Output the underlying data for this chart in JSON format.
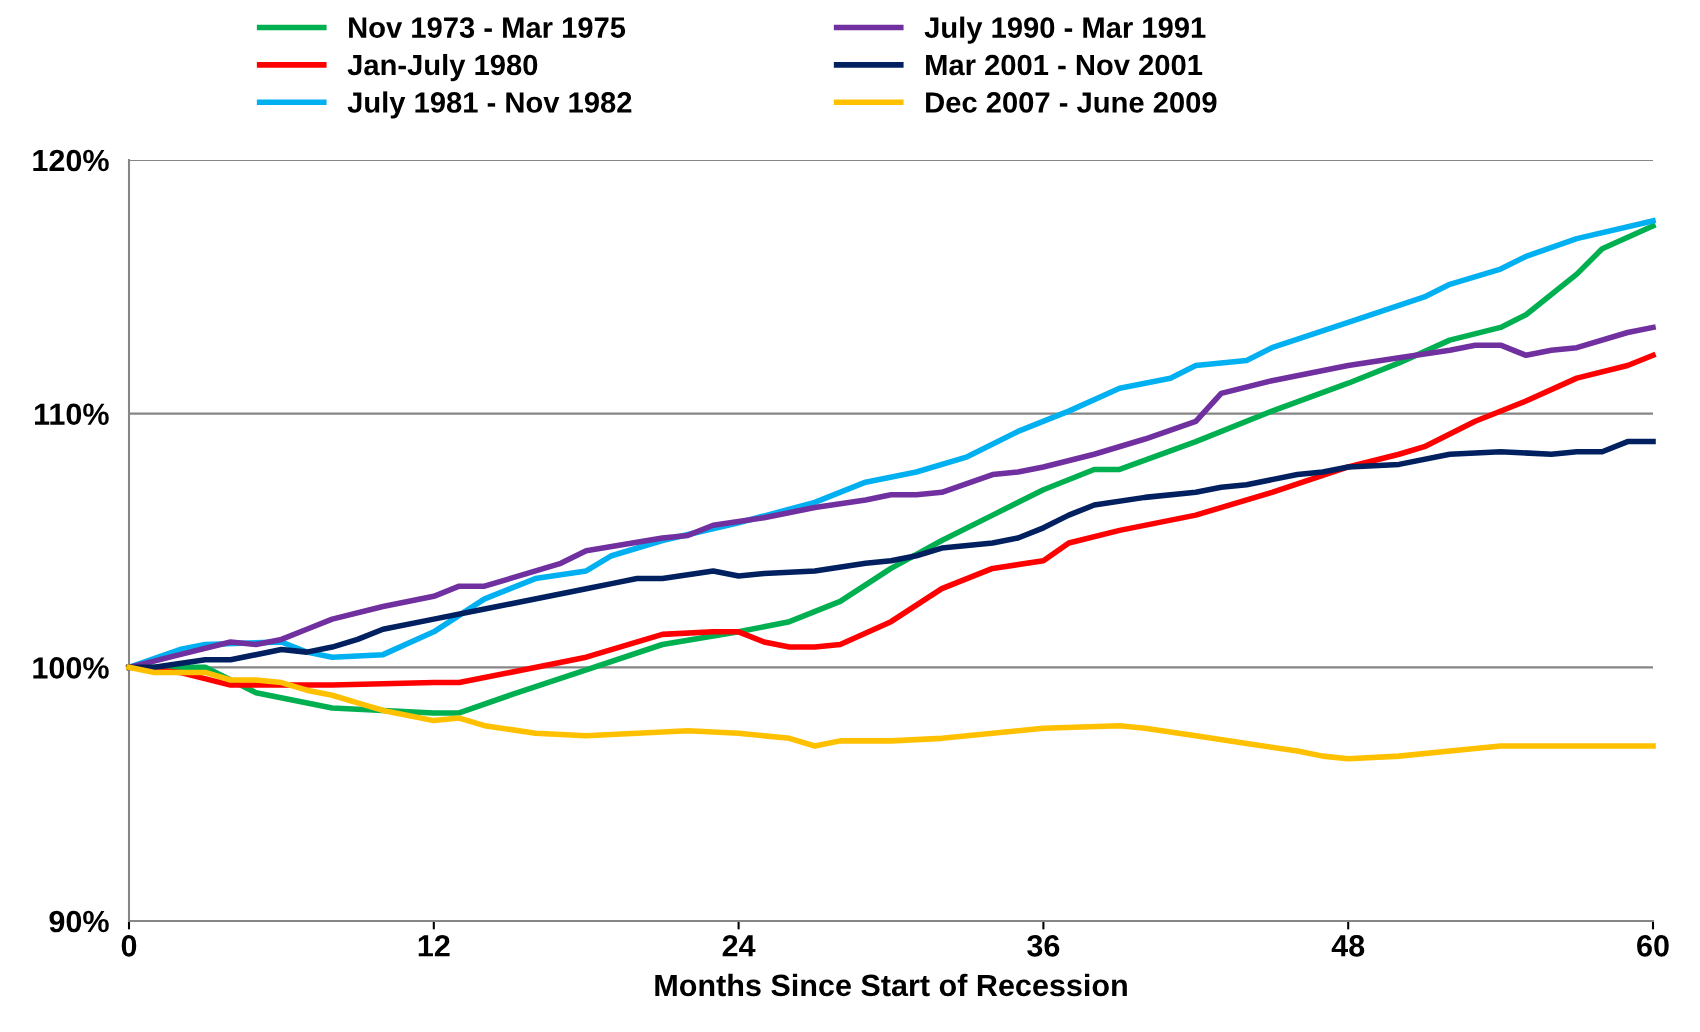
{
  "chart_data": {
    "type": "line",
    "xlabel": "Months Since Start of Recession",
    "xlim": [
      0,
      60
    ],
    "xticks": [
      0,
      12,
      24,
      36,
      48,
      60
    ],
    "ylim": [
      90,
      120
    ],
    "yticks": [
      {
        "value": 90,
        "label": "90%"
      },
      {
        "value": 100,
        "label": "100%"
      },
      {
        "value": 110,
        "label": "110%"
      },
      {
        "value": 120,
        "label": "120%"
      }
    ],
    "grid": "y",
    "legend": "top",
    "marker": "none",
    "line_style": "solid",
    "series": [
      {
        "name": "Nov 1973 - Mar 1975",
        "color": "#00b050",
        "x": [
          0,
          3,
          5,
          8,
          12,
          13,
          15,
          18,
          21,
          24,
          26,
          28,
          30,
          32,
          34,
          36,
          38,
          39,
          42,
          45,
          48,
          50,
          52,
          54,
          55,
          57,
          58,
          60
        ],
        "values": [
          100,
          100.0,
          99.0,
          98.4,
          98.2,
          98.2,
          98.9,
          99.9,
          100.9,
          101.4,
          101.8,
          102.6,
          103.9,
          105.0,
          106.0,
          107.0,
          107.8,
          107.8,
          108.9,
          110.1,
          111.2,
          112.0,
          112.9,
          113.4,
          113.9,
          115.5,
          116.5,
          117.4
        ]
      },
      {
        "name": "Jan-July 1980",
        "color": "#ff0000",
        "x": [
          0,
          2,
          4,
          8,
          12,
          13,
          15,
          18,
          21,
          23,
          24,
          25,
          26,
          27,
          28,
          30,
          32,
          34,
          36,
          37,
          39,
          42,
          45,
          48,
          50,
          51,
          53,
          55,
          57,
          59,
          60
        ],
        "values": [
          100,
          99.8,
          99.3,
          99.3,
          99.4,
          99.4,
          99.8,
          100.4,
          101.3,
          101.4,
          101.4,
          101.0,
          100.8,
          100.8,
          100.9,
          101.8,
          103.1,
          103.9,
          104.2,
          104.9,
          105.4,
          106.0,
          106.9,
          107.9,
          108.4,
          108.7,
          109.7,
          110.5,
          111.4,
          111.9,
          112.3
        ]
      },
      {
        "name": "July 1981 - Nov 1982",
        "color": "#00b0f0",
        "x": [
          0,
          2,
          3,
          6,
          7,
          8,
          10,
          12,
          14,
          16,
          18,
          19,
          21,
          24,
          27,
          29,
          31,
          33,
          35,
          37,
          39,
          41,
          42,
          44,
          45,
          48,
          51,
          52,
          54,
          55,
          57,
          60
        ],
        "values": [
          100,
          100.7,
          100.9,
          101.0,
          100.6,
          100.4,
          100.5,
          101.4,
          102.7,
          103.5,
          103.8,
          104.4,
          105.0,
          105.7,
          106.5,
          107.3,
          107.7,
          108.3,
          109.3,
          110.1,
          111.0,
          111.4,
          111.9,
          112.1,
          112.6,
          113.6,
          114.6,
          115.1,
          115.7,
          116.2,
          116.9,
          117.6
        ]
      },
      {
        "name": "July 1990 - Mar 1991",
        "color": "#7030a0",
        "x": [
          0,
          2,
          4,
          5,
          6,
          7,
          8,
          10,
          12,
          13,
          14,
          17,
          18,
          21,
          22,
          23,
          25,
          27,
          29,
          30,
          31,
          32,
          34,
          35,
          36,
          38,
          40,
          42,
          43,
          45,
          48,
          50,
          52,
          53,
          54,
          55,
          56,
          57,
          59,
          60
        ],
        "values": [
          100,
          100.5,
          101.0,
          100.9,
          101.1,
          101.5,
          101.9,
          102.4,
          102.8,
          103.2,
          103.2,
          104.1,
          104.6,
          105.1,
          105.2,
          105.6,
          105.9,
          106.3,
          106.6,
          106.8,
          106.8,
          106.9,
          107.6,
          107.7,
          107.9,
          108.4,
          109.0,
          109.7,
          110.8,
          111.3,
          111.9,
          112.2,
          112.5,
          112.7,
          112.7,
          112.3,
          112.5,
          112.6,
          113.2,
          113.4
        ]
      },
      {
        "name": "Mar 2001 - Nov 2001",
        "color": "#002060",
        "x": [
          0,
          1,
          3,
          4,
          6,
          7,
          8,
          9,
          10,
          12,
          14,
          15,
          18,
          19,
          20,
          21,
          23,
          24,
          25,
          27,
          29,
          30,
          31,
          32,
          34,
          35,
          36,
          37,
          38,
          40,
          42,
          43,
          44,
          46,
          47,
          48,
          50,
          52,
          54,
          56,
          57,
          58,
          59,
          60
        ],
        "values": [
          100,
          100.0,
          100.3,
          100.3,
          100.7,
          100.6,
          100.8,
          101.1,
          101.5,
          101.9,
          102.3,
          102.5,
          103.1,
          103.3,
          103.5,
          103.5,
          103.8,
          103.6,
          103.7,
          103.8,
          104.1,
          104.2,
          104.4,
          104.7,
          104.9,
          105.1,
          105.5,
          106.0,
          106.4,
          106.7,
          106.9,
          107.1,
          107.2,
          107.6,
          107.7,
          107.9,
          108.0,
          108.4,
          108.5,
          108.4,
          108.5,
          108.5,
          108.9,
          108.9
        ]
      },
      {
        "name": "Dec 2007 - June 2009",
        "color": "#ffc000",
        "x": [
          0,
          1,
          3,
          4,
          5,
          6,
          7,
          8,
          9,
          10,
          12,
          13,
          14,
          16,
          18,
          20,
          22,
          24,
          26,
          27,
          28,
          30,
          32,
          34,
          36,
          39,
          40,
          42,
          44,
          46,
          47,
          48,
          50,
          52,
          54,
          57,
          58,
          60
        ],
        "values": [
          100,
          99.8,
          99.8,
          99.5,
          99.5,
          99.4,
          99.1,
          98.9,
          98.6,
          98.3,
          97.9,
          98.0,
          97.7,
          97.4,
          97.3,
          97.4,
          97.5,
          97.4,
          97.2,
          96.9,
          97.1,
          97.1,
          97.2,
          97.4,
          97.6,
          97.7,
          97.6,
          97.3,
          97.0,
          96.7,
          96.5,
          96.4,
          96.5,
          96.7,
          96.9,
          96.9,
          96.9,
          96.9
        ]
      }
    ]
  }
}
